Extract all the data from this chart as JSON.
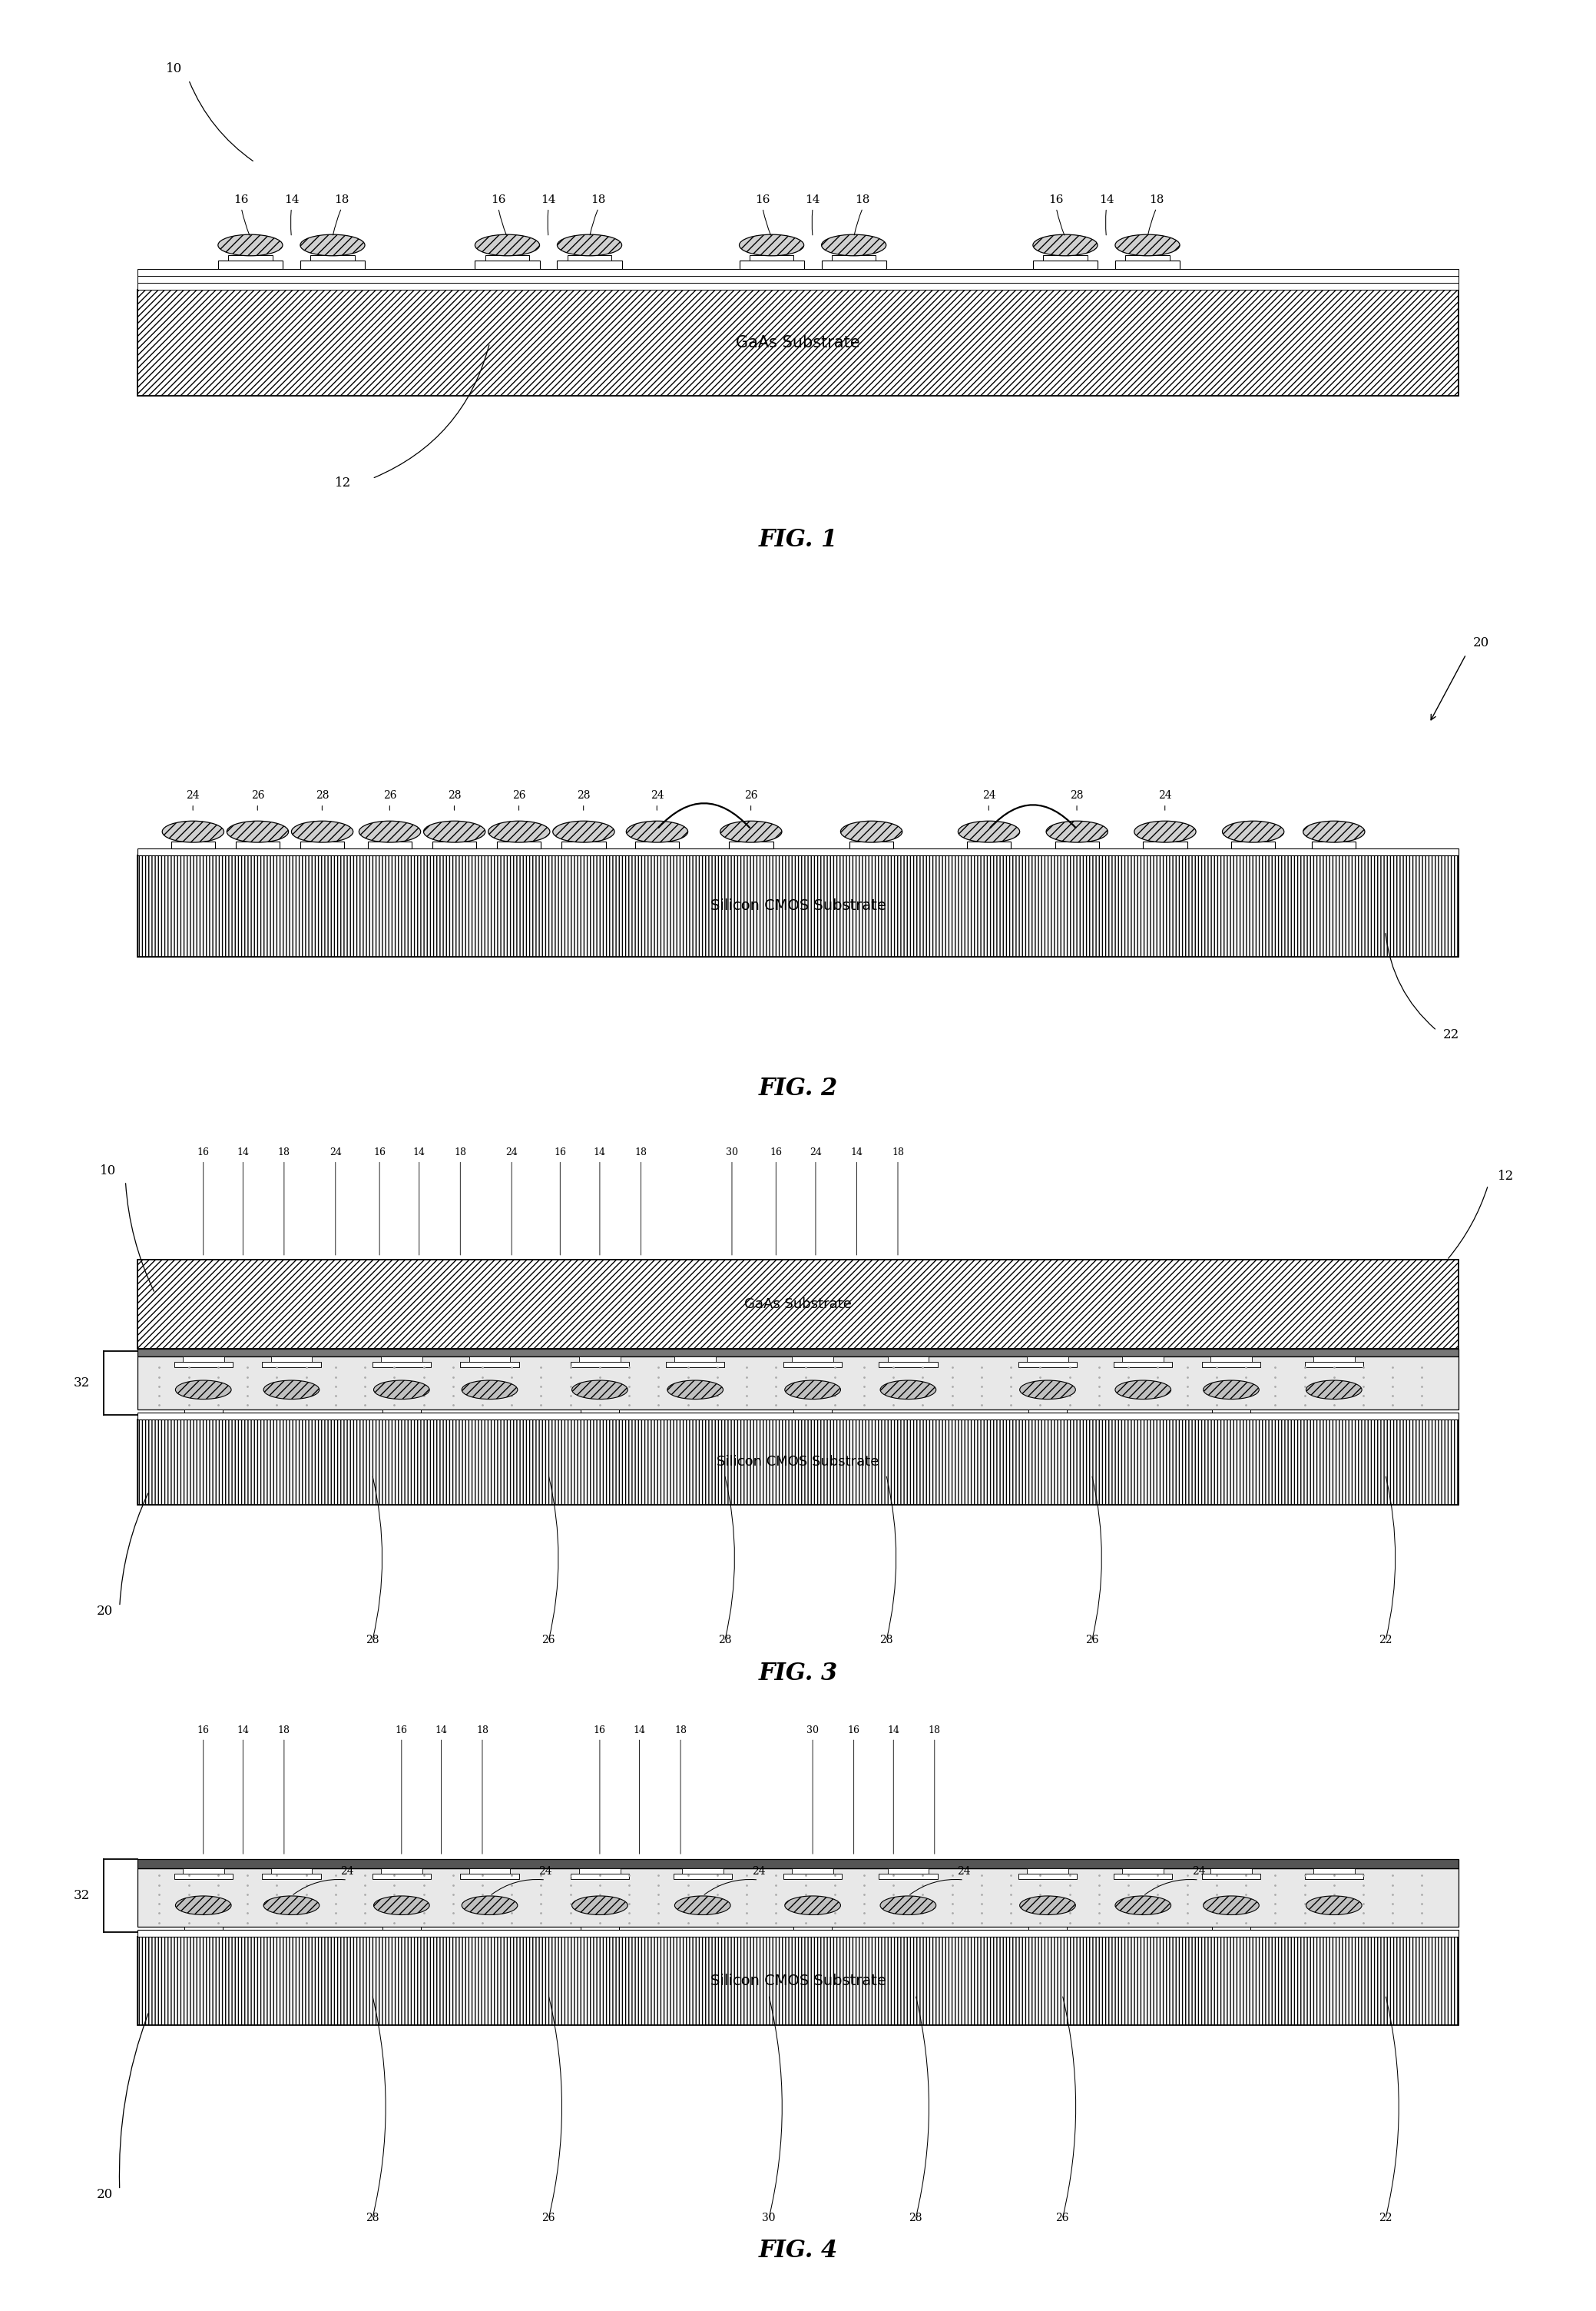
{
  "fig_width": 20.78,
  "fig_height": 30.07,
  "bg_color": "#ffffff",
  "fig1": {
    "title": "FIG. 1",
    "gaas_label": "GaAs Substrate",
    "label_10": "10",
    "label_12": "12",
    "comp_labels": [
      "16",
      "14",
      "18"
    ]
  },
  "fig2": {
    "title": "FIG. 2",
    "cmos_label": "Silicon CMOS Substrate",
    "label_20": "20",
    "label_22": "22",
    "comp_labels": [
      "24",
      "26",
      "28"
    ]
  },
  "fig3": {
    "title": "FIG. 3",
    "gaas_label": "GaAs Substrate",
    "cmos_label": "Silicon CMOS Substrate",
    "label_10": "10",
    "label_12": "12",
    "label_20": "20",
    "label_22": "22",
    "label_30": "30",
    "label_32": "32"
  },
  "fig4": {
    "title": "FIG. 4",
    "cmos_label": "Silicon CMOS Substrate",
    "label_20": "20",
    "label_22": "22",
    "label_30": "30",
    "label_32": "32"
  }
}
